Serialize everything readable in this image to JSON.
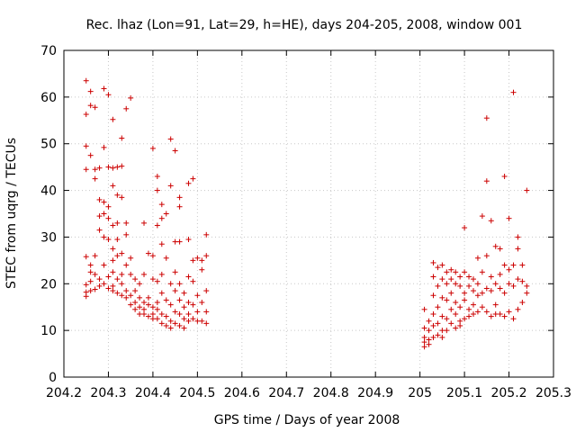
{
  "chart_data": {
    "type": "scatter",
    "title": "Rec. lhaz (Lon=91, Lat=29, h=HE), days 204-205, 2008, window 001",
    "xlabel": "GPS time / Days of year 2008",
    "ylabel": "STEC from uqrg / TECUs",
    "xlim": [
      204.2,
      205.3
    ],
    "ylim": [
      0,
      70
    ],
    "xticks": [
      "204.2",
      "204.3",
      "204.4",
      "204.5",
      "204.6",
      "204.7",
      "204.8",
      "204.9",
      "205",
      "205.1",
      "205.2",
      "205.3"
    ],
    "yticks": [
      "0",
      "10",
      "20",
      "30",
      "40",
      "50",
      "60",
      "70"
    ],
    "grid": true,
    "color": "#cc0000",
    "series": [
      {
        "name": "STEC",
        "marker": "+",
        "points": [
          [
            204.25,
            63.5
          ],
          [
            204.25,
            56.3
          ],
          [
            204.25,
            49.5
          ],
          [
            204.25,
            44.5
          ],
          [
            204.25,
            25.8
          ],
          [
            204.25,
            19.8
          ],
          [
            204.25,
            18.2
          ],
          [
            204.25,
            17.3
          ],
          [
            204.26,
            61.2
          ],
          [
            204.26,
            58.2
          ],
          [
            204.26,
            47.5
          ],
          [
            204.26,
            24.0
          ],
          [
            204.26,
            22.5
          ],
          [
            204.26,
            20.5
          ],
          [
            204.26,
            18.5
          ],
          [
            204.27,
            57.8
          ],
          [
            204.27,
            44.5
          ],
          [
            204.27,
            42.5
          ],
          [
            204.27,
            26.0
          ],
          [
            204.27,
            22.0
          ],
          [
            204.27,
            18.8
          ],
          [
            204.28,
            44.8
          ],
          [
            204.28,
            38.0
          ],
          [
            204.28,
            34.5
          ],
          [
            204.28,
            31.5
          ],
          [
            204.28,
            21.0
          ],
          [
            204.28,
            19.5
          ],
          [
            204.29,
            61.8
          ],
          [
            204.29,
            49.2
          ],
          [
            204.29,
            37.5
          ],
          [
            204.29,
            35.0
          ],
          [
            204.29,
            30.0
          ],
          [
            204.29,
            24.0
          ],
          [
            204.29,
            20.0
          ],
          [
            204.3,
            60.5
          ],
          [
            204.3,
            45.0
          ],
          [
            204.3,
            36.5
          ],
          [
            204.3,
            34.0
          ],
          [
            204.3,
            29.5
          ],
          [
            204.3,
            21.5
          ],
          [
            204.3,
            19.0
          ],
          [
            204.31,
            55.2
          ],
          [
            204.31,
            44.8
          ],
          [
            204.31,
            41.0
          ],
          [
            204.31,
            32.5
          ],
          [
            204.31,
            27.5
          ],
          [
            204.31,
            25.0
          ],
          [
            204.31,
            22.5
          ],
          [
            204.31,
            19.5
          ],
          [
            204.31,
            18.5
          ],
          [
            204.32,
            45.0
          ],
          [
            204.32,
            39.0
          ],
          [
            204.32,
            33.0
          ],
          [
            204.32,
            29.5
          ],
          [
            204.32,
            26.0
          ],
          [
            204.32,
            21.0
          ],
          [
            204.32,
            18.0
          ],
          [
            204.33,
            51.2
          ],
          [
            204.33,
            45.2
          ],
          [
            204.33,
            38.5
          ],
          [
            204.33,
            26.5
          ],
          [
            204.33,
            22.0
          ],
          [
            204.33,
            20.0
          ],
          [
            204.33,
            17.5
          ],
          [
            204.34,
            57.5
          ],
          [
            204.34,
            33.0
          ],
          [
            204.34,
            30.5
          ],
          [
            204.34,
            24.0
          ],
          [
            204.34,
            18.5
          ],
          [
            204.34,
            17.0
          ],
          [
            204.35,
            59.8
          ],
          [
            204.35,
            25.5
          ],
          [
            204.35,
            22.0
          ],
          [
            204.35,
            17.5
          ],
          [
            204.35,
            15.5
          ],
          [
            204.36,
            21.0
          ],
          [
            204.36,
            18.5
          ],
          [
            204.36,
            16.0
          ],
          [
            204.36,
            14.5
          ],
          [
            204.37,
            20.0
          ],
          [
            204.37,
            17.0
          ],
          [
            204.37,
            15.0
          ],
          [
            204.37,
            13.5
          ],
          [
            204.38,
            33.0
          ],
          [
            204.38,
            22.0
          ],
          [
            204.38,
            16.0
          ],
          [
            204.38,
            14.5
          ],
          [
            204.38,
            13.5
          ],
          [
            204.39,
            26.5
          ],
          [
            204.39,
            17.0
          ],
          [
            204.39,
            15.5
          ],
          [
            204.39,
            13.0
          ],
          [
            204.4,
            49.0
          ],
          [
            204.4,
            26.0
          ],
          [
            204.4,
            21.0
          ],
          [
            204.4,
            15.0
          ],
          [
            204.4,
            13.5
          ],
          [
            204.4,
            12.5
          ],
          [
            204.41,
            43.0
          ],
          [
            204.41,
            40.0
          ],
          [
            204.41,
            32.5
          ],
          [
            204.41,
            20.5
          ],
          [
            204.41,
            16.0
          ],
          [
            204.41,
            14.5
          ],
          [
            204.41,
            12.5
          ],
          [
            204.42,
            37.0
          ],
          [
            204.42,
            34.0
          ],
          [
            204.42,
            28.5
          ],
          [
            204.42,
            22.0
          ],
          [
            204.42,
            18.0
          ],
          [
            204.42,
            13.5
          ],
          [
            204.42,
            11.5
          ],
          [
            204.43,
            35.0
          ],
          [
            204.43,
            25.5
          ],
          [
            204.43,
            16.5
          ],
          [
            204.43,
            13.0
          ],
          [
            204.43,
            11.0
          ],
          [
            204.44,
            51.0
          ],
          [
            204.44,
            41.0
          ],
          [
            204.44,
            20.0
          ],
          [
            204.44,
            15.5
          ],
          [
            204.44,
            12.0
          ],
          [
            204.44,
            10.5
          ],
          [
            204.45,
            48.5
          ],
          [
            204.45,
            29.0
          ],
          [
            204.45,
            22.5
          ],
          [
            204.45,
            18.5
          ],
          [
            204.45,
            14.0
          ],
          [
            204.45,
            11.5
          ],
          [
            204.46,
            38.5
          ],
          [
            204.46,
            36.5
          ],
          [
            204.46,
            29.0
          ],
          [
            204.46,
            20.0
          ],
          [
            204.46,
            16.5
          ],
          [
            204.46,
            13.5
          ],
          [
            204.46,
            11.0
          ],
          [
            204.47,
            18.0
          ],
          [
            204.47,
            15.0
          ],
          [
            204.47,
            12.5
          ],
          [
            204.47,
            10.5
          ],
          [
            204.48,
            41.5
          ],
          [
            204.48,
            29.5
          ],
          [
            204.48,
            21.5
          ],
          [
            204.48,
            16.0
          ],
          [
            204.48,
            13.5
          ],
          [
            204.48,
            12.0
          ],
          [
            204.49,
            42.5
          ],
          [
            204.49,
            25.0
          ],
          [
            204.49,
            20.5
          ],
          [
            204.49,
            15.5
          ],
          [
            204.49,
            12.5
          ],
          [
            204.5,
            25.5
          ],
          [
            204.5,
            17.5
          ],
          [
            204.5,
            14.0
          ],
          [
            204.5,
            12.0
          ],
          [
            204.51,
            25.0
          ],
          [
            204.51,
            23.0
          ],
          [
            204.51,
            16.0
          ],
          [
            204.51,
            12.0
          ],
          [
            204.52,
            30.5
          ],
          [
            204.52,
            26.0
          ],
          [
            204.52,
            18.5
          ],
          [
            204.52,
            14.0
          ],
          [
            204.52,
            11.5
          ],
          [
            205.01,
            14.5
          ],
          [
            205.01,
            10.5
          ],
          [
            205.01,
            8.5
          ],
          [
            205.01,
            7.5
          ],
          [
            205.01,
            6.5
          ],
          [
            205.02,
            12.0
          ],
          [
            205.02,
            10.0
          ],
          [
            205.02,
            8.0
          ],
          [
            205.02,
            7.0
          ],
          [
            205.03,
            24.5
          ],
          [
            205.03,
            21.5
          ],
          [
            205.03,
            17.5
          ],
          [
            205.03,
            13.5
          ],
          [
            205.03,
            11.0
          ],
          [
            205.03,
            8.5
          ],
          [
            205.04,
            23.5
          ],
          [
            205.04,
            19.5
          ],
          [
            205.04,
            15.0
          ],
          [
            205.04,
            11.5
          ],
          [
            205.04,
            9.0
          ],
          [
            205.05,
            24.0
          ],
          [
            205.05,
            21.0
          ],
          [
            205.05,
            17.0
          ],
          [
            205.05,
            13.0
          ],
          [
            205.05,
            10.0
          ],
          [
            205.05,
            8.5
          ],
          [
            205.06,
            22.5
          ],
          [
            205.06,
            20.0
          ],
          [
            205.06,
            16.5
          ],
          [
            205.06,
            12.5
          ],
          [
            205.06,
            10.0
          ],
          [
            205.07,
            23.0
          ],
          [
            205.07,
            21.0
          ],
          [
            205.07,
            18.0
          ],
          [
            205.07,
            14.5
          ],
          [
            205.07,
            11.5
          ],
          [
            205.08,
            22.5
          ],
          [
            205.08,
            20.0
          ],
          [
            205.08,
            16.0
          ],
          [
            205.08,
            13.5
          ],
          [
            205.08,
            10.5
          ],
          [
            205.09,
            21.5
          ],
          [
            205.09,
            19.5
          ],
          [
            205.09,
            15.0
          ],
          [
            205.09,
            12.0
          ],
          [
            205.09,
            11.0
          ],
          [
            205.1,
            32.0
          ],
          [
            205.1,
            22.5
          ],
          [
            205.1,
            18.0
          ],
          [
            205.1,
            16.5
          ],
          [
            205.1,
            12.5
          ],
          [
            205.11,
            21.5
          ],
          [
            205.11,
            19.5
          ],
          [
            205.11,
            14.5
          ],
          [
            205.11,
            13.0
          ],
          [
            205.12,
            21.0
          ],
          [
            205.12,
            18.5
          ],
          [
            205.12,
            15.5
          ],
          [
            205.12,
            13.5
          ],
          [
            205.13,
            25.5
          ],
          [
            205.13,
            20.0
          ],
          [
            205.13,
            17.5
          ],
          [
            205.13,
            14.0
          ],
          [
            205.14,
            34.5
          ],
          [
            205.14,
            22.5
          ],
          [
            205.14,
            18.0
          ],
          [
            205.14,
            15.0
          ],
          [
            205.15,
            55.5
          ],
          [
            205.15,
            42.0
          ],
          [
            205.15,
            26.0
          ],
          [
            205.15,
            19.0
          ],
          [
            205.15,
            14.0
          ],
          [
            205.16,
            33.5
          ],
          [
            205.16,
            21.5
          ],
          [
            205.16,
            18.5
          ],
          [
            205.16,
            13.0
          ],
          [
            205.17,
            28.0
          ],
          [
            205.17,
            20.0
          ],
          [
            205.17,
            15.5
          ],
          [
            205.17,
            13.5
          ],
          [
            205.18,
            27.5
          ],
          [
            205.18,
            22.0
          ],
          [
            205.18,
            19.0
          ],
          [
            205.18,
            13.5
          ],
          [
            205.19,
            43.0
          ],
          [
            205.19,
            24.0
          ],
          [
            205.19,
            18.0
          ],
          [
            205.19,
            13.0
          ],
          [
            205.2,
            34.0
          ],
          [
            205.2,
            23.0
          ],
          [
            205.2,
            20.0
          ],
          [
            205.2,
            14.0
          ],
          [
            205.21,
            61.0
          ],
          [
            205.21,
            24.0
          ],
          [
            205.21,
            19.5
          ],
          [
            205.21,
            12.5
          ],
          [
            205.22,
            30.0
          ],
          [
            205.22,
            27.5
          ],
          [
            205.22,
            21.0
          ],
          [
            205.22,
            14.5
          ],
          [
            205.23,
            24.0
          ],
          [
            205.23,
            20.5
          ],
          [
            205.23,
            16.0
          ],
          [
            205.24,
            40.0
          ],
          [
            205.24,
            18.0
          ],
          [
            205.24,
            19.5
          ]
        ]
      }
    ]
  }
}
